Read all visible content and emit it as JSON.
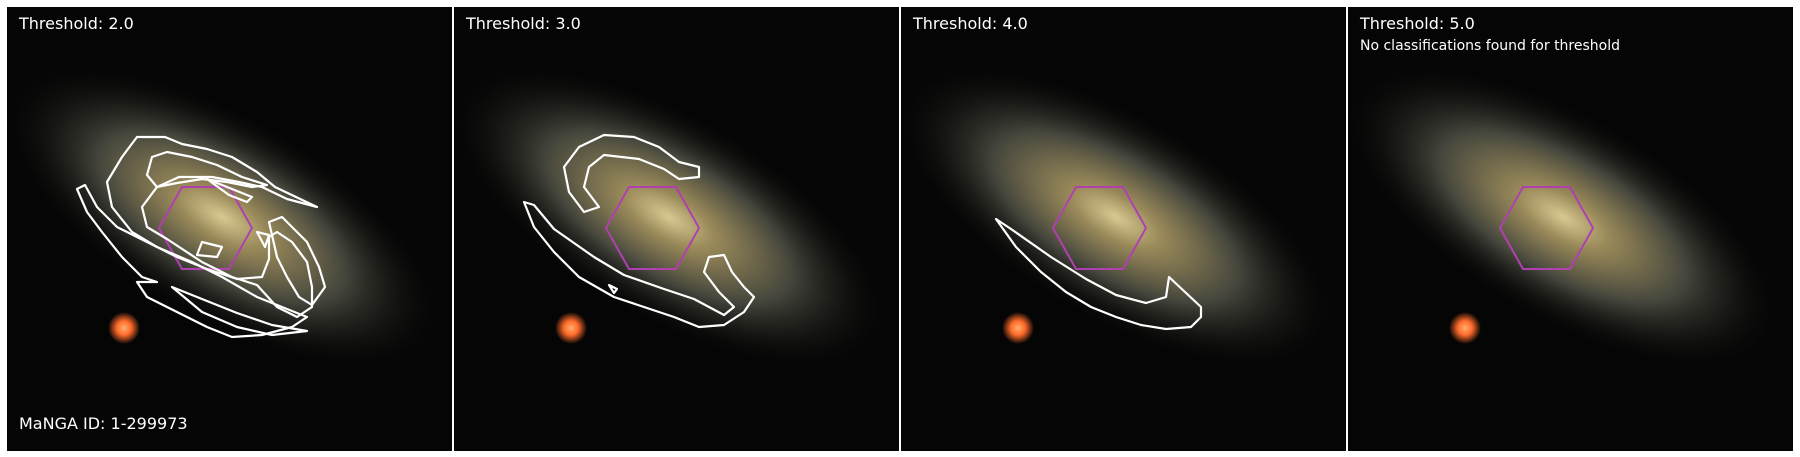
{
  "manga_id": "MaNGA ID: 1-299973",
  "panels": [
    {
      "id": "p1",
      "threshold": "Threshold: 2.0",
      "note": ""
    },
    {
      "id": "p2",
      "threshold": "Threshold: 3.0",
      "note": ""
    },
    {
      "id": "p3",
      "threshold": "Threshold: 4.0",
      "note": ""
    },
    {
      "id": "p4",
      "threshold": "Threshold: 5.0",
      "note": "No classifications found for threshold"
    }
  ],
  "colors": {
    "contour": "#ffffff",
    "hexagon": "#b040b0",
    "star": "#ff6a2a",
    "galaxy_core": "#d8c890",
    "background": "#050505"
  }
}
